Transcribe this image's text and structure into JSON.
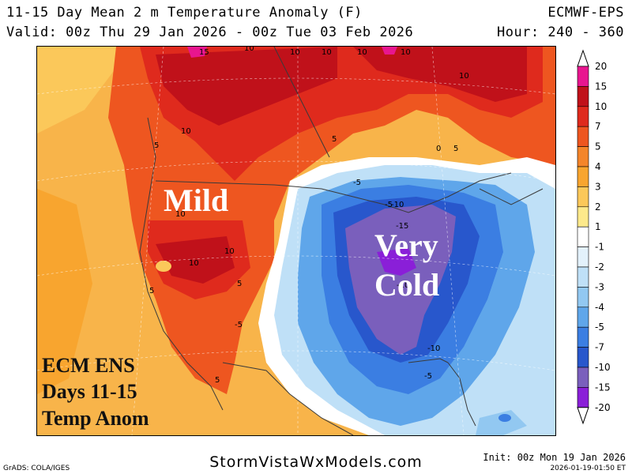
{
  "header": {
    "title": "11-15 Day Mean 2 m Temperature Anomaly (F)",
    "model": "ECMWF-EPS",
    "valid": "Valid: 00z Thu 29 Jan 2026 - 00z Tue 03 Feb 2026",
    "hour": "Hour: 240 - 360"
  },
  "map": {
    "annotations": {
      "mild": "Mild",
      "very": "Very",
      "cold": "Cold"
    },
    "corner_lines": [
      "ECM ENS",
      "Days 11-15",
      "Temp Anom"
    ],
    "contour_labels": [
      "15",
      "10",
      "10",
      "10",
      "10",
      "10",
      "10",
      "10",
      "5",
      "5",
      "10",
      "10",
      "5",
      "5",
      "10",
      "5",
      "5",
      "0",
      "-5",
      "-5",
      "-10",
      "-15",
      "-10",
      "-10",
      "-5",
      "-5"
    ]
  },
  "legend": {
    "labels": [
      "20",
      "15",
      "10",
      "7",
      "5",
      "4",
      "3",
      "2",
      "1",
      "-1",
      "-2",
      "-3",
      "-4",
      "-5",
      "-7",
      "-10",
      "-15",
      "-20"
    ],
    "colors": [
      "#e8168f",
      "#c0111a",
      "#df2a1d",
      "#ee5620",
      "#f4852a",
      "#f8a52f",
      "#fbc85a",
      "#fde98b",
      "#ffffff",
      "#e3f1fb",
      "#bfe0f7",
      "#92c8f1",
      "#5fa6ea",
      "#3b7ee2",
      "#2857cc",
      "#7a5fbc",
      "#8a1fd8"
    ],
    "top_color": "#e8168f",
    "bottom_color": "#8a1fd8"
  },
  "footer": {
    "site": "StormVistaWxModels.com",
    "init": "Init: 00z Mon 19 Jan 2026",
    "stamp": "2026-01-19-01:50 ET",
    "credit": "GrADS: COLA/IGES"
  }
}
